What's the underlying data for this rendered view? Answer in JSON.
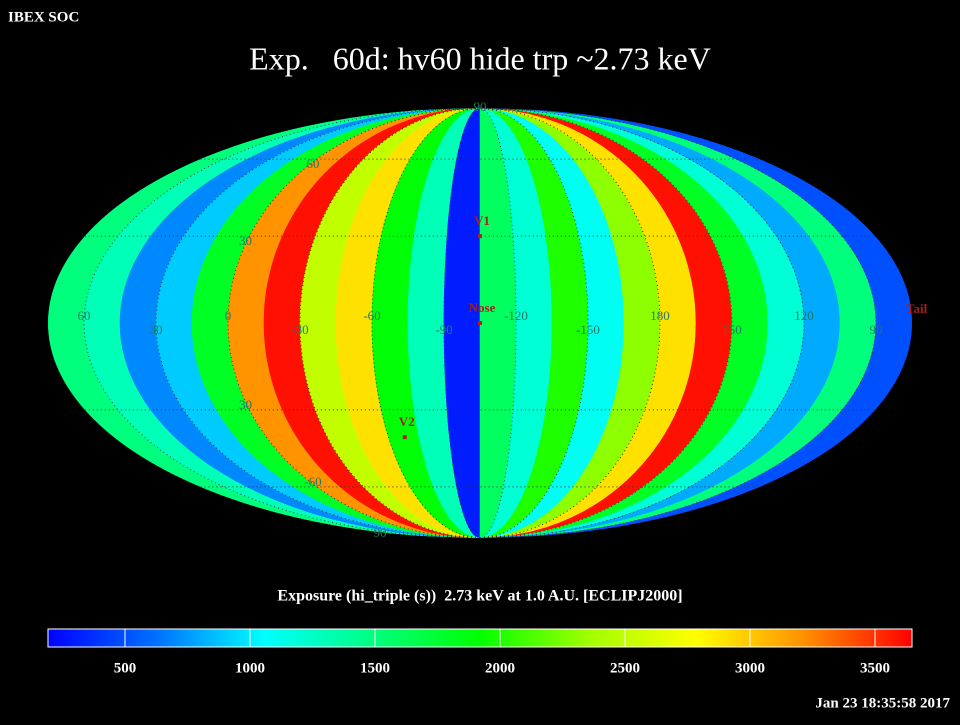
{
  "header": {
    "label": "IBEX SOC"
  },
  "chart_data": {
    "type": "mollweide",
    "title": "Exp.   60d: hv60 hide trp ~2.73 keV",
    "lon_edges": [
      75,
      60,
      45,
      30,
      15,
      0,
      -15,
      -30,
      -45,
      -60,
      -75,
      -90,
      -105,
      -120,
      -135,
      -150,
      -165,
      -180,
      -195,
      -210,
      -225,
      -240,
      -255,
      -270,
      -285
    ],
    "values": [
      1500,
      1300,
      700,
      900,
      1800,
      3200,
      3600,
      2500,
      2900,
      1900,
      1300,
      300,
      1600,
      1200,
      2000,
      1100,
      2300,
      2900,
      3600,
      1800,
      1200,
      800,
      1500,
      500
    ],
    "lonticks": [
      60,
      30,
      0,
      -30,
      -60,
      -90,
      -120,
      -150,
      {
        "value": -180,
        "label": "180"
      },
      {
        "value": -210,
        "label": "150"
      },
      {
        "value": -240,
        "label": "120"
      },
      {
        "value": -270,
        "label": "90"
      }
    ],
    "latticks": [
      90,
      60,
      30,
      {
        "value": -30,
        "label": "30"
      },
      -60,
      {
        "value": -90,
        "label": "90"
      }
    ],
    "markers": [
      {
        "name": "V1",
        "lon": -105,
        "lat": 30
      },
      {
        "name": "Nose",
        "lon": -105,
        "lat": 0
      },
      {
        "name": "V2",
        "lon": -68,
        "lat": -40
      },
      {
        "name": "Tail",
        "lon": -285,
        "lat": 0
      }
    ],
    "colorbar": {
      "label": "Exposure (hi_triple (s))  2.73 keV at 1.0 A.U. [ECLIPJ2000]",
      "clim": [
        192,
        3648
      ],
      "ticks": [
        500,
        1000,
        1500,
        2000,
        2500,
        3000,
        3500
      ],
      "colors": [
        "#0000ff",
        "#0070ff",
        "#00ffff",
        "#00ff80",
        "#00ff00",
        "#a0ff00",
        "#ffff00",
        "#ff9000",
        "#ff0000"
      ]
    }
  },
  "timestamp": "Jan 23 18:35:58 2017"
}
